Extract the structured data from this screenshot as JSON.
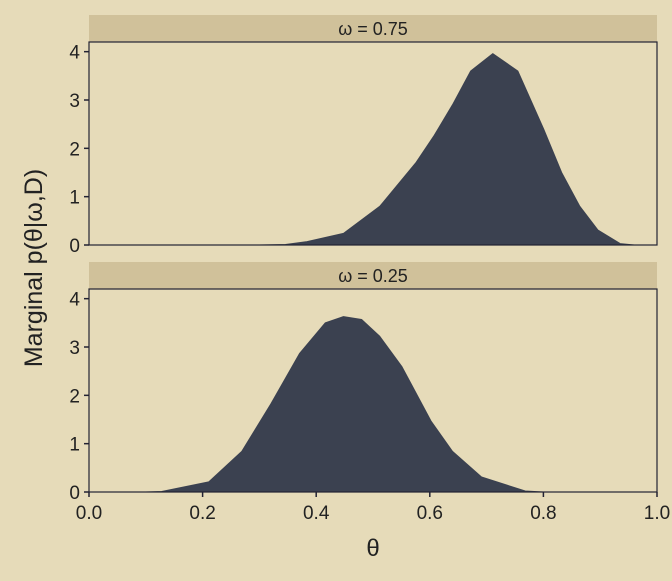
{
  "chart_data": [
    {
      "type": "area",
      "panel_label": "ω = 0.75",
      "xlim": [
        0,
        1
      ],
      "ylim": [
        0,
        4.2
      ],
      "x_ticks": [
        "0.0",
        "0.2",
        "0.4",
        "0.6",
        "0.8",
        "1.0"
      ],
      "y_ticks": [
        "0",
        "1",
        "2",
        "3",
        "4"
      ],
      "x": [
        0.0,
        0.3,
        0.346,
        0.384,
        0.448,
        0.512,
        0.576,
        0.608,
        0.64,
        0.672,
        0.711,
        0.755,
        0.8,
        0.832,
        0.864,
        0.896,
        0.935,
        0.96,
        1.0
      ],
      "y": [
        0,
        0,
        0.01,
        0.07,
        0.24,
        0.8,
        1.71,
        2.27,
        2.9,
        3.6,
        3.96,
        3.6,
        2.41,
        1.5,
        0.8,
        0.31,
        0.03,
        0,
        0
      ]
    },
    {
      "type": "area",
      "panel_label": "ω = 0.25",
      "xlim": [
        0,
        1
      ],
      "ylim": [
        0,
        4.2
      ],
      "x_ticks": [
        "0.0",
        "0.2",
        "0.4",
        "0.6",
        "0.8",
        "1.0"
      ],
      "y_ticks": [
        "0",
        "1",
        "2",
        "3",
        "4"
      ],
      "x": [
        0.0,
        0.1,
        0.128,
        0.211,
        0.269,
        0.32,
        0.371,
        0.416,
        0.448,
        0.48,
        0.512,
        0.551,
        0.602,
        0.64,
        0.691,
        0.768,
        0.8,
        1.0
      ],
      "y": [
        0,
        0,
        0.01,
        0.21,
        0.84,
        1.82,
        2.87,
        3.5,
        3.63,
        3.57,
        3.22,
        2.59,
        1.47,
        0.84,
        0.31,
        0.02,
        0,
        0
      ]
    }
  ],
  "xlabel": "θ",
  "ylabel": "Marginal p(θ|ω,D)",
  "colors": {
    "background": "#E6DBB9",
    "strip": "#D0C19A",
    "fill": "#3B4150",
    "axis": "#222233"
  }
}
